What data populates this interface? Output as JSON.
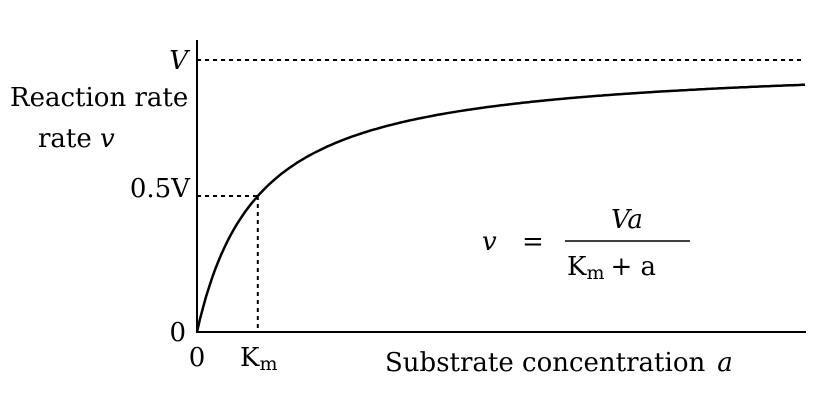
{
  "chart_data": {
    "type": "line",
    "title": "",
    "xlabel": "Substrate concentration",
    "xlabel_symbol": "a",
    "ylabel": "Reaction rate",
    "ylabel_symbol": "v",
    "equation": {
      "lhs": "v",
      "eq": "=",
      "numerator": "Va",
      "denominator_k": "K",
      "denominator_sub": "m",
      "denominator_rest": "+ a"
    },
    "x_ticks": [
      {
        "label": "0",
        "value": 0
      },
      {
        "label": "K",
        "sub": "m",
        "value": 1
      }
    ],
    "y_ticks": [
      {
        "label": "0",
        "value": 0
      },
      {
        "label": "0.5V",
        "value": 0.5
      },
      {
        "label": "V",
        "value": 1
      }
    ],
    "x_units": "multiples of Km",
    "y_units": "fraction of V",
    "xlim": [
      0,
      10
    ],
    "ylim": [
      0,
      1.16
    ],
    "series": [
      {
        "model": "v = V a / (Km + a)",
        "Km": 1,
        "V": 1,
        "x": [
          0,
          0.25,
          0.5,
          1,
          1.5,
          2,
          3,
          4,
          5,
          6,
          7,
          8,
          9,
          10
        ],
        "y": [
          0,
          0.2,
          0.333,
          0.5,
          0.6,
          0.667,
          0.75,
          0.8,
          0.833,
          0.857,
          0.875,
          0.889,
          0.9,
          0.909
        ]
      }
    ],
    "reference_lines": [
      "V (dashed horizontal)",
      "0.5V (dashed to curve)",
      "Km (dashed vertical)"
    ],
    "grid": false,
    "colors": {
      "line": "#000000",
      "background": "#ffffff"
    }
  }
}
